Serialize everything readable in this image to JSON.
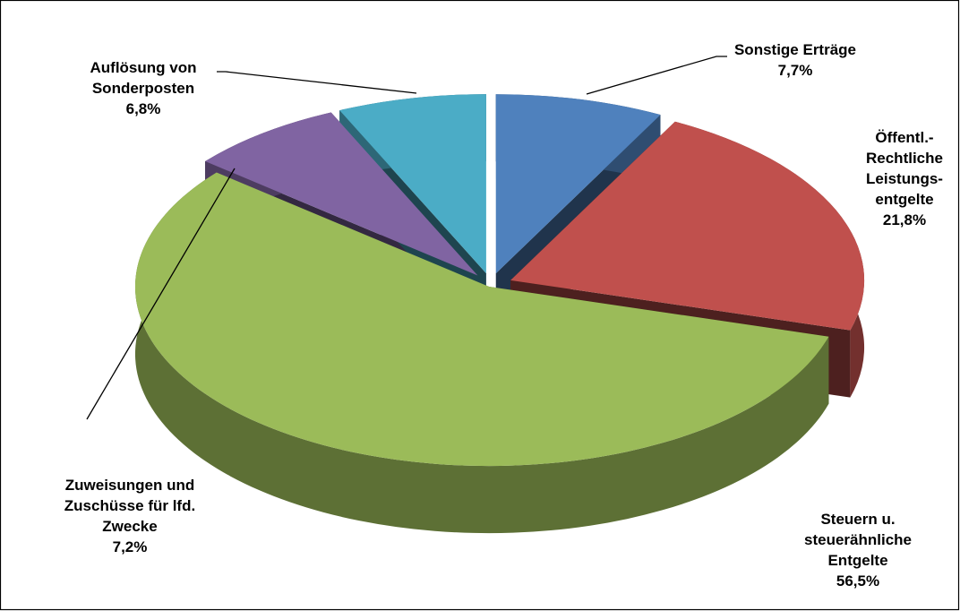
{
  "chart_data": {
    "type": "pie",
    "categories": [
      "Sonstige Erträge",
      "Öffentl.-\nRechtliche\nLeistungs-\nentgelte",
      "Steuern u.\nsteuerähnliche\nEntgelte",
      "Zuweisungen und\nZuschüsse für lfd.\nZwecke",
      "Auflösung von\nSonderposten"
    ],
    "values": [
      7.7,
      21.8,
      56.5,
      7.2,
      6.8
    ],
    "value_labels": [
      "7,7%",
      "21,8%",
      "56,5%",
      "7,2%",
      "6,8%"
    ],
    "colors": [
      "#4f81bd",
      "#c0504d",
      "#9bbb59",
      "#8064a2",
      "#4bacc6"
    ]
  }
}
